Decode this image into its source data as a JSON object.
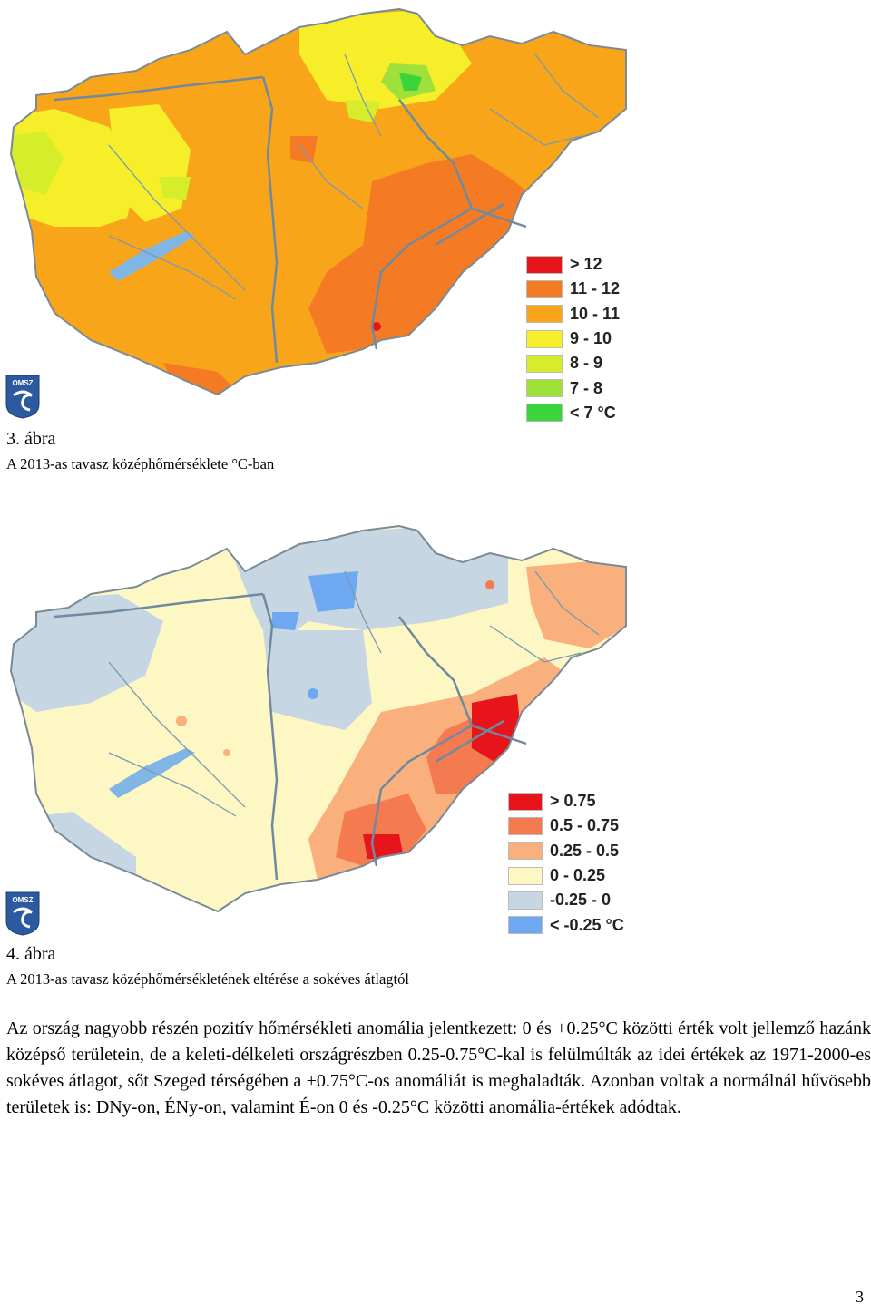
{
  "figure1": {
    "number_label": "3. ábra",
    "caption": "A 2013-as tavasz középhőmérséklete °C-ban",
    "logo_text": "OMSZ",
    "legend": [
      {
        "label": "> 12",
        "color": "#e8141c"
      },
      {
        "label": "11 - 12",
        "color": "#f47b23"
      },
      {
        "label": "10 - 11",
        "color": "#f9a51a"
      },
      {
        "label": "9 - 10",
        "color": "#f7ee2a"
      },
      {
        "label": "8 - 9",
        "color": "#d6ed2c"
      },
      {
        "label": "7 - 8",
        "color": "#9fe03a"
      },
      {
        "label": "< 7 °C",
        "color": "#3ad53a"
      }
    ]
  },
  "figure2": {
    "number_label": "4. ábra",
    "caption": "A 2013-as tavasz középhőmérsékletének eltérése a sokéves átlagtól",
    "logo_text": "OMSZ",
    "legend": [
      {
        "label": "> 0.75",
        "color": "#e8141c"
      },
      {
        "label": "0.5 - 0.75",
        "color": "#f47a50"
      },
      {
        "label": "0.25 - 0.5",
        "color": "#f9b07d"
      },
      {
        "label": "0 - 0.25",
        "color": "#fdf7c4"
      },
      {
        "label": "-0.25 - 0",
        "color": "#c6d6e3"
      },
      {
        "label": "< -0.25 °C",
        "color": "#6ea8f0"
      }
    ]
  },
  "paragraph": "Az ország nagyobb részén pozitív hőmérsékleti anomália jelentkezett: 0 és +0.25°C közötti érték volt jellemző hazánk középső területein, de a keleti-délkeleti országrészben 0.25-0.75°C-kal is felülmúlták az idei értékek az 1971-2000-es sokéves átlagot, sőt Szeged térségében a +0.75°C-os anomáliát is meghaladták. Azonban voltak a normálnál hűvösebb területek is: DNy-on, ÉNy-on, valamint É-on 0 és -0.25°C közötti anomália-értékek adódtak.",
  "page_number": "3"
}
